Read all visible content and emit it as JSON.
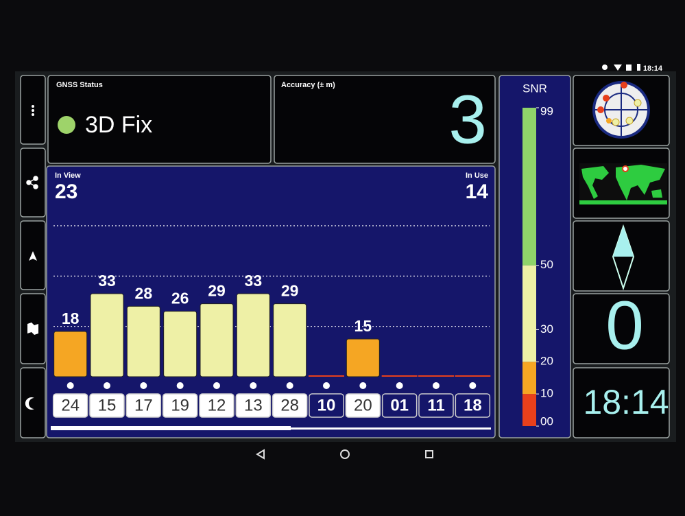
{
  "status_bar": {
    "time": "18:14"
  },
  "gnss_status": {
    "title": "GNSS Status",
    "fix": "3D Fix"
  },
  "accuracy": {
    "title": "Accuracy (± m)",
    "value": 3
  },
  "chart_data": {
    "type": "bar",
    "in_view_label": "In View",
    "in_view": 23,
    "in_use_label": "In Use",
    "in_use": 14,
    "categories": [
      "24",
      "15",
      "17",
      "19",
      "12",
      "13",
      "28",
      "10",
      "20",
      "01",
      "11",
      "18"
    ],
    "used": [
      true,
      true,
      true,
      true,
      true,
      true,
      true,
      false,
      true,
      false,
      false,
      false
    ],
    "values": [
      18,
      33,
      28,
      26,
      29,
      33,
      29,
      null,
      15,
      null,
      null,
      null
    ],
    "ylim": [
      0,
      75
    ],
    "yticks": [
      20,
      40,
      60
    ],
    "grid": true
  },
  "snr_scale": {
    "title": "SNR",
    "lim": [
      0,
      99
    ],
    "ticks": [
      {
        "value": 0,
        "label": "00"
      },
      10,
      20,
      30,
      50,
      99
    ],
    "bands": [
      {
        "from": 0,
        "to": 10,
        "color": "#e8401c"
      },
      {
        "from": 10,
        "to": 20,
        "color": "#f5a623"
      },
      {
        "from": 20,
        "to": 50,
        "color": "#eef0a6"
      },
      {
        "from": 50,
        "to": 99,
        "color": "#8fd46a"
      }
    ]
  },
  "bearing": {
    "value": 0
  },
  "clock": {
    "time": "18:14"
  }
}
